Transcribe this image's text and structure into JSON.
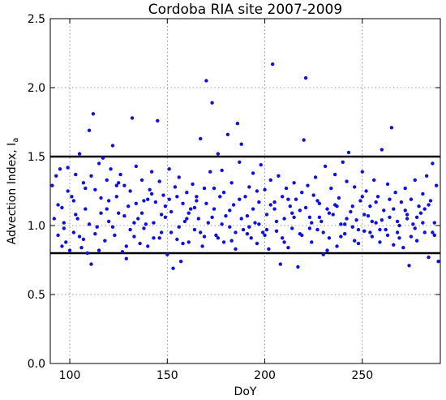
{
  "chart_data": {
    "type": "scatter",
    "title": "Cordoba RIA site 2007-2009",
    "xlabel": "DoY",
    "ylabel_main": "Advection Index, I",
    "ylabel_sub": "a",
    "xlim": [
      90,
      290
    ],
    "ylim": [
      0.0,
      2.5
    ],
    "xticks": [
      100,
      150,
      200,
      250
    ],
    "xtick_labels": [
      "100",
      "150",
      "200",
      "250"
    ],
    "yticks": [
      0.0,
      0.5,
      1.0,
      1.5,
      2.0,
      2.5
    ],
    "ytick_labels": [
      "0.0",
      "0.5",
      "1.0",
      "1.5",
      "2.0",
      "2.5"
    ],
    "grid": true,
    "reference_lines": [
      0.8,
      1.5
    ],
    "marker_color": "#1010dd",
    "reference_line_color": "#000000",
    "points": [
      [
        91,
        1.29
      ],
      [
        93,
        1.36
      ],
      [
        94,
        0.93
      ],
      [
        95,
        1.41
      ],
      [
        96,
        1.13
      ],
      [
        97,
        1.02
      ],
      [
        98,
        0.88
      ],
      [
        99,
        1.42
      ],
      [
        100,
        0.82
      ],
      [
        101,
        1.21
      ],
      [
        102,
        0.95
      ],
      [
        103,
        1.37
      ],
      [
        104,
        1.05
      ],
      [
        105,
        1.52
      ],
      [
        106,
        0.84
      ],
      [
        107,
        1.31
      ],
      [
        108,
        1.12
      ],
      [
        109,
        0.8
      ],
      [
        110,
        1.69
      ],
      [
        111,
        0.72
      ],
      [
        112,
        1.81
      ],
      [
        113,
        1.26
      ],
      [
        114,
        0.99
      ],
      [
        115,
        1.45
      ],
      [
        116,
        1.09
      ],
      [
        117,
        1.49
      ],
      [
        118,
        0.89
      ],
      [
        119,
        1.33
      ],
      [
        120,
        1.03
      ],
      [
        121,
        1.41
      ],
      [
        122,
        1.58
      ],
      [
        123,
        0.93
      ],
      [
        124,
        1.21
      ],
      [
        125,
        1.09
      ],
      [
        126,
        1.37
      ],
      [
        127,
        0.81
      ],
      [
        128,
        1.29
      ],
      [
        129,
        0.76
      ],
      [
        130,
        1.14
      ],
      [
        131,
        1.25
      ],
      [
        132,
        1.78
      ],
      [
        133,
        0.92
      ],
      [
        134,
        1.43
      ],
      [
        135,
        1.05
      ],
      [
        136,
        0.87
      ],
      [
        137,
        1.33
      ],
      [
        138,
        1.18
      ],
      [
        139,
        1.01
      ],
      [
        140,
        0.85
      ],
      [
        141,
        1.26
      ],
      [
        142,
        1.39
      ],
      [
        143,
        0.91
      ],
      [
        144,
        1.17
      ],
      [
        145,
        1.76
      ],
      [
        146,
        1.32
      ],
      [
        147,
        0.95
      ],
      [
        148,
        1.22
      ],
      [
        149,
        1.06
      ],
      [
        150,
        0.79
      ],
      [
        151,
        1.41
      ],
      [
        152,
        1.1
      ],
      [
        153,
        0.69
      ],
      [
        154,
        1.28
      ],
      [
        155,
        0.9
      ],
      [
        156,
        1.35
      ],
      [
        157,
        0.74
      ],
      [
        158,
        1.16
      ],
      [
        159,
        1.03
      ],
      [
        160,
        1.24
      ],
      [
        161,
        0.88
      ],
      [
        162,
        1.12
      ],
      [
        163,
        1.3
      ],
      [
        164,
        0.97
      ],
      [
        165,
        1.18
      ],
      [
        166,
        1.05
      ],
      [
        167,
        1.63
      ],
      [
        168,
        0.85
      ],
      [
        169,
        1.27
      ],
      [
        170,
        2.05
      ],
      [
        171,
        1.02
      ],
      [
        172,
        1.39
      ],
      [
        173,
        1.89
      ],
      [
        174,
        1.12
      ],
      [
        175,
        0.93
      ],
      [
        176,
        1.52
      ],
      [
        177,
        1.21
      ],
      [
        178,
        1.4
      ],
      [
        179,
        0.88
      ],
      [
        180,
        1.07
      ],
      [
        181,
        1.66
      ],
      [
        182,
        0.99
      ],
      [
        183,
        1.31
      ],
      [
        184,
        1.15
      ],
      [
        185,
        0.83
      ],
      [
        186,
        1.74
      ],
      [
        187,
        1.46
      ],
      [
        188,
        1.59
      ],
      [
        189,
        0.97
      ],
      [
        190,
        1.21
      ],
      [
        191,
        1.07
      ],
      [
        192,
        1.28
      ],
      [
        193,
        0.91
      ],
      [
        194,
        1.38
      ],
      [
        195,
        1.02
      ],
      [
        196,
        0.87
      ],
      [
        197,
        1.17
      ],
      [
        198,
        1.44
      ],
      [
        199,
        0.95
      ],
      [
        200,
        1.26
      ],
      [
        201,
        1.08
      ],
      [
        202,
        0.83
      ],
      [
        203,
        1.33
      ],
      [
        204,
        2.17
      ],
      [
        205,
        1.12
      ],
      [
        206,
        0.96
      ],
      [
        207,
        1.36
      ],
      [
        208,
        0.72
      ],
      [
        209,
        1.21
      ],
      [
        210,
        1.05
      ],
      [
        211,
        1.27
      ],
      [
        212,
        0.84
      ],
      [
        213,
        1.14
      ],
      [
        214,
        0.98
      ],
      [
        215,
        1.31
      ],
      [
        216,
        1.19
      ],
      [
        217,
        0.7
      ],
      [
        218,
        1.11
      ],
      [
        219,
        0.93
      ],
      [
        220,
        1.62
      ],
      [
        221,
        2.07
      ],
      [
        222,
        1.29
      ],
      [
        223,
        1.06
      ],
      [
        224,
        0.88
      ],
      [
        225,
        1.22
      ],
      [
        226,
        1.35
      ],
      [
        227,
        0.97
      ],
      [
        228,
        1.16
      ],
      [
        229,
        1.03
      ],
      [
        230,
        0.79
      ],
      [
        231,
        1.43
      ],
      [
        232,
        1.12
      ],
      [
        233,
        0.91
      ],
      [
        234,
        1.27
      ],
      [
        235,
        1.08
      ],
      [
        236,
        1.37
      ],
      [
        237,
        0.85
      ],
      [
        238,
        1.2
      ],
      [
        239,
        1.01
      ],
      [
        240,
        1.46
      ],
      [
        241,
        0.94
      ],
      [
        242,
        1.32
      ],
      [
        243,
        1.53
      ],
      [
        244,
        1.1
      ],
      [
        245,
        0.99
      ],
      [
        246,
        1.28
      ],
      [
        247,
        1.04
      ],
      [
        248,
        0.87
      ],
      [
        249,
        1.18
      ],
      [
        250,
        1.39
      ],
      [
        251,
        0.96
      ],
      [
        252,
        1.25
      ],
      [
        253,
        1.07
      ],
      [
        254,
        1.14
      ],
      [
        255,
        0.92
      ],
      [
        256,
        1.33
      ],
      [
        257,
        1.02
      ],
      [
        258,
        1.21
      ],
      [
        259,
        0.88
      ],
      [
        260,
        1.55
      ],
      [
        261,
        1.11
      ],
      [
        262,
        0.97
      ],
      [
        263,
        1.3
      ],
      [
        264,
        1.06
      ],
      [
        265,
        1.71
      ],
      [
        266,
        0.86
      ],
      [
        267,
        1.24
      ],
      [
        268,
        1.03
      ],
      [
        269,
        0.91
      ],
      [
        270,
        1.17
      ],
      [
        271,
        0.84
      ],
      [
        272,
        1.27
      ],
      [
        273,
        1.05
      ],
      [
        274,
        0.71
      ],
      [
        275,
        1.19
      ],
      [
        276,
        1.01
      ],
      [
        277,
        1.33
      ],
      [
        278,
        0.89
      ],
      [
        279,
        1.14
      ],
      [
        280,
        1.09
      ],
      [
        281,
        1.23
      ],
      [
        282,
        0.95
      ],
      [
        283,
        1.36
      ],
      [
        284,
        0.77
      ],
      [
        285,
        1.18
      ],
      [
        286,
        1.45
      ],
      [
        287,
        1.02
      ],
      [
        288,
        1.29
      ],
      [
        289,
        0.74
      ],
      [
        92,
        1.05
      ],
      [
        94,
        1.15
      ],
      [
        97,
        0.98
      ],
      [
        99,
        1.25
      ],
      [
        102,
        1.18
      ],
      [
        105,
        0.92
      ],
      [
        108,
        1.27
      ],
      [
        110,
        1.01
      ],
      [
        113,
        0.94
      ],
      [
        116,
        1.2
      ],
      [
        119,
        1.12
      ],
      [
        122,
        0.99
      ],
      [
        125,
        1.31
      ],
      [
        128,
        1.07
      ],
      [
        131,
        0.97
      ],
      [
        134,
        1.16
      ],
      [
        137,
        1.09
      ],
      [
        140,
        1.19
      ],
      [
        143,
        1.02
      ],
      [
        146,
        0.91
      ],
      [
        149,
        1.14
      ],
      [
        152,
        0.95
      ],
      [
        155,
        1.21
      ],
      [
        158,
        0.87
      ],
      [
        161,
        1.09
      ],
      [
        164,
        1.13
      ],
      [
        167,
        0.95
      ],
      [
        170,
        1.16
      ],
      [
        173,
        1.06
      ],
      [
        176,
        0.91
      ],
      [
        179,
        1.24
      ],
      [
        182,
        1.11
      ],
      [
        185,
        0.95
      ],
      [
        188,
        1.05
      ],
      [
        191,
        0.94
      ],
      [
        194,
        1.12
      ],
      [
        197,
        1.01
      ],
      [
        200,
        0.93
      ],
      [
        203,
        1.15
      ],
      [
        206,
        1.03
      ],
      [
        209,
        0.91
      ],
      [
        212,
        1.19
      ],
      [
        215,
        1.06
      ],
      [
        218,
        0.94
      ],
      [
        221,
        1.13
      ],
      [
        224,
        1.02
      ],
      [
        227,
        1.18
      ],
      [
        230,
        0.95
      ],
      [
        233,
        1.09
      ],
      [
        236,
        1.15
      ],
      [
        239,
        0.92
      ],
      [
        242,
        1.05
      ],
      [
        245,
        1.14
      ],
      [
        248,
        0.97
      ],
      [
        251,
        1.08
      ],
      [
        254,
        0.95
      ],
      [
        257,
        1.17
      ],
      [
        260,
        1.04
      ],
      [
        263,
        0.93
      ],
      [
        266,
        1.12
      ],
      [
        269,
        1.0
      ],
      [
        272,
        1.11
      ],
      [
        275,
        0.92
      ],
      [
        278,
        1.06
      ],
      [
        281,
        1.02
      ],
      [
        284,
        1.15
      ],
      [
        287,
        0.93
      ],
      [
        96,
        0.85
      ],
      [
        103,
        1.08
      ],
      [
        107,
        0.9
      ],
      [
        111,
        1.36
      ],
      [
        115,
        0.82
      ],
      [
        120,
        1.18
      ],
      [
        124,
        1.29
      ],
      [
        129,
        0.85
      ],
      [
        133,
        1.02
      ],
      [
        138,
        0.98
      ],
      [
        142,
        1.23
      ],
      [
        147,
        1.08
      ],
      [
        151,
        1.19
      ],
      [
        156,
        0.99
      ],
      [
        160,
        1.05
      ],
      [
        165,
        1.21
      ],
      [
        169,
        0.92
      ],
      [
        174,
        1.27
      ],
      [
        178,
        1.01
      ],
      [
        183,
        0.89
      ],
      [
        187,
        1.19
      ],
      [
        192,
        0.99
      ],
      [
        196,
        1.25
      ],
      [
        201,
        0.97
      ],
      [
        205,
        1.17
      ],
      [
        210,
        0.88
      ],
      [
        214,
        1.09
      ],
      [
        219,
        1.24
      ],
      [
        223,
        0.98
      ],
      [
        228,
        1.06
      ],
      [
        232,
        0.82
      ],
      [
        237,
        1.14
      ],
      [
        241,
        1.01
      ],
      [
        246,
        0.89
      ],
      [
        250,
        1.21
      ],
      [
        255,
        1.03
      ],
      [
        259,
        0.97
      ],
      [
        264,
        1.19
      ],
      [
        268,
        0.95
      ],
      [
        273,
        1.08
      ],
      [
        277,
        0.98
      ],
      [
        282,
        1.12
      ],
      [
        286,
        0.95
      ]
    ]
  }
}
